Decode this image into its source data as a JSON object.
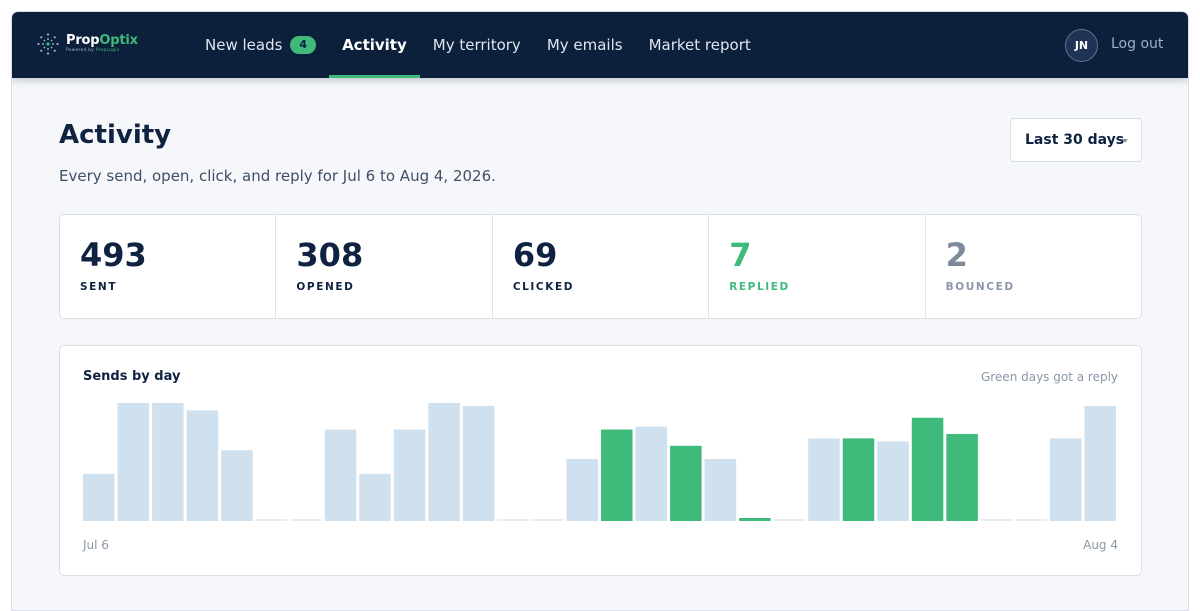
{
  "app": {
    "name_part1": "Prop",
    "name_part2": "Optix",
    "tagline_part1": "Powered by ",
    "tagline_part2": "PropLogix"
  },
  "nav": {
    "items": [
      {
        "label": "New leads",
        "badge": "4",
        "active": false
      },
      {
        "label": "Activity",
        "active": true
      },
      {
        "label": "My territory",
        "active": false
      },
      {
        "label": "My emails",
        "active": false
      },
      {
        "label": "Market report",
        "active": false
      }
    ]
  },
  "user": {
    "initials": "JN",
    "logout_label": "Log out"
  },
  "page": {
    "title": "Activity",
    "subtitle": "Every send, open, click, and reply for Jul 6 to Aug 4, 2026.",
    "range_select": "Last 30 days"
  },
  "stats": [
    {
      "value": "493",
      "label": "SENT"
    },
    {
      "value": "308",
      "label": "OPENED"
    },
    {
      "value": "69",
      "label": "CLICKED"
    },
    {
      "value": "7",
      "label": "REPLIED"
    },
    {
      "value": "2",
      "label": "BOUNCED"
    }
  ],
  "colors": {
    "navy": "#0c1f3b",
    "accent_green": "#3fba7a",
    "bar_default": "#cfe0ee",
    "bar_empty": "#e9edf2"
  },
  "chart_data": {
    "type": "bar",
    "title": "Sends by day",
    "legend": "Green days got a reply",
    "x_start_label": "Jul 6",
    "x_end_label": "Aug 4",
    "days": 30,
    "values": [
      16,
      40,
      40,
      37.5,
      24,
      0,
      0,
      31,
      16,
      31,
      40,
      39,
      0,
      0,
      21,
      31,
      32,
      25.5,
      21,
      1,
      0,
      28,
      28,
      27,
      35,
      29.5,
      0,
      0,
      28,
      39
    ],
    "replied": [
      false,
      false,
      false,
      false,
      false,
      false,
      false,
      false,
      false,
      false,
      false,
      false,
      false,
      false,
      false,
      true,
      false,
      true,
      false,
      true,
      false,
      false,
      true,
      false,
      true,
      true,
      false,
      false,
      false,
      false
    ],
    "ylim": [
      0,
      40
    ]
  }
}
